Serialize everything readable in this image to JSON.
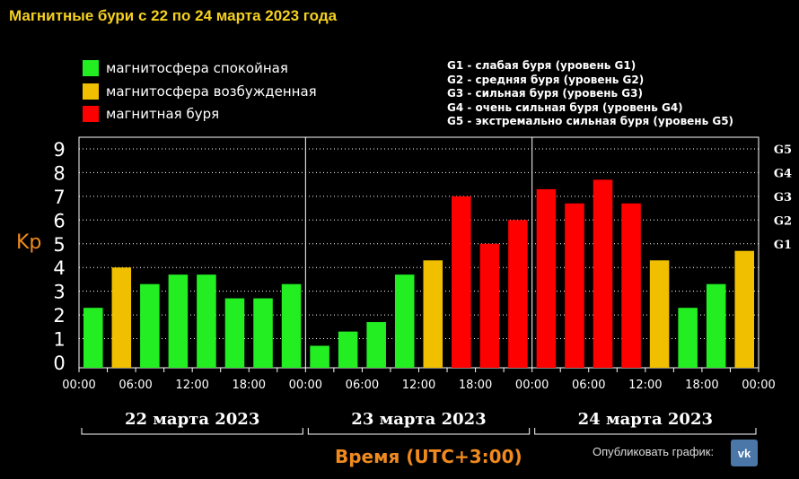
{
  "title": "Магнитные бури с 22 по 24 марта 2023 года",
  "legend": [
    {
      "label": "магнитосфера спокойная",
      "color": "#22ee22"
    },
    {
      "label": "магнитосфера возбужденная",
      "color": "#f0c000"
    },
    {
      "label": "магнитная буря",
      "color": "#ff0000"
    }
  ],
  "g_levels": [
    "G1 - слабая буря (уровень G1)",
    "G2 - средняя буря (уровень G2)",
    "G3 - сильная буря (уровень G3)",
    "G4 - очень сильная буря (уровень G4)",
    "G5 - экстремально сильная буря (уровень G5)"
  ],
  "ylabel": "Kp",
  "xlabel": "Время (UTC+3:00)",
  "publish_label": "Опубликовать график:",
  "vk_label": "vk",
  "chart_data": {
    "type": "bar",
    "title": "Магнитные бури с 22 по 24 марта 2023 года",
    "ylabel": "Kp",
    "xlabel": "Время (UTC+3:00)",
    "ylim": [
      0,
      9
    ],
    "y_ticks": [
      "0",
      "1",
      "2",
      "3",
      "4",
      "5",
      "6",
      "7",
      "8",
      "9"
    ],
    "right_ticks": [
      {
        "label": "G1",
        "value": 5
      },
      {
        "label": "G2",
        "value": 6
      },
      {
        "label": "G3",
        "value": 7
      },
      {
        "label": "G4",
        "value": 8
      },
      {
        "label": "G5",
        "value": 9
      }
    ],
    "x_tick_labels": [
      "00:00",
      "06:00",
      "12:00",
      "18:00",
      "00:00",
      "06:00",
      "12:00",
      "18:00",
      "00:00",
      "06:00",
      "12:00",
      "18:00",
      "00:00"
    ],
    "days": [
      "22 марта 2023",
      "23 марта 2023",
      "24 марта 2023"
    ],
    "grid": true,
    "values": [
      2.3,
      4.0,
      3.3,
      3.7,
      3.7,
      2.7,
      2.7,
      3.3,
      0.7,
      1.3,
      1.7,
      3.7,
      4.3,
      7.0,
      5.0,
      6.0,
      7.3,
      6.7,
      7.7,
      6.7,
      4.3,
      2.3,
      3.3,
      4.7
    ],
    "colors": {
      "quiet": "#22ee22",
      "active": "#f0c000",
      "storm": "#ff0000"
    }
  }
}
